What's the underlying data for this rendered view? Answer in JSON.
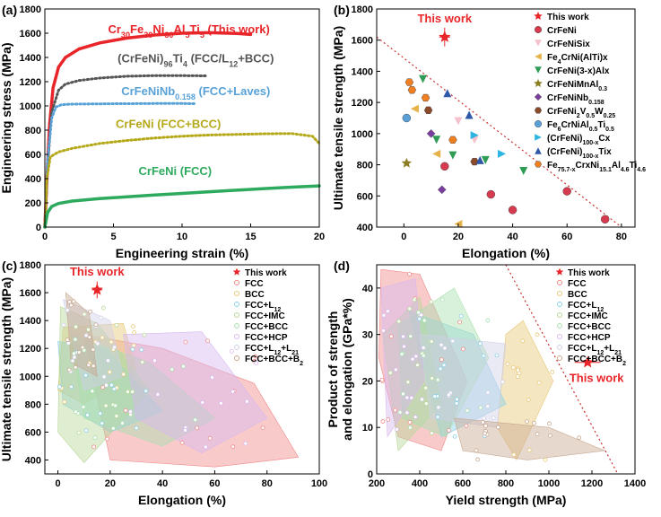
{
  "chart_data": [
    {
      "panel_label": "(a)",
      "type": "line",
      "xlabel": "Engineering strain (%)",
      "ylabel": "Engineering stress (MPa)",
      "xlim": [
        0,
        20
      ],
      "ylim": [
        0,
        1800
      ],
      "xticks": [
        0,
        5,
        10,
        15,
        20
      ],
      "yticks": [
        0,
        200,
        400,
        600,
        800,
        1000,
        1200,
        1400,
        1600,
        1800
      ],
      "series": [
        {
          "name": "Cr30Fe30Ni30Al5Ti5 (This work)",
          "color": "#e8262a",
          "dash": "solid",
          "x": [
            0,
            0.15,
            0.35,
            0.6,
            1.0,
            1.5,
            2.5,
            4,
            6,
            8,
            10,
            12,
            14,
            15
          ],
          "y": [
            0,
            400,
            850,
            1150,
            1320,
            1400,
            1470,
            1520,
            1560,
            1585,
            1600,
            1605,
            1598,
            1590
          ]
        },
        {
          "name": "(CrFeNi)96Ti4 (FCC/L12+BCC)",
          "color": "#555555",
          "dash": "dot",
          "x": [
            0,
            0.2,
            0.5,
            1.0,
            1.5,
            2.5,
            4,
            6,
            8,
            10,
            11.8
          ],
          "y": [
            0,
            500,
            950,
            1130,
            1180,
            1210,
            1230,
            1245,
            1250,
            1250,
            1248
          ]
        },
        {
          "name": "CrFeNiNb0.158 (FCC+Laves)",
          "color": "#58a2d8",
          "dash": "dot",
          "x": [
            0,
            0.2,
            0.5,
            0.8,
            1.2,
            2,
            5,
            8,
            10,
            11
          ],
          "y": [
            0,
            550,
            900,
            990,
            1010,
            1015,
            1018,
            1020,
            1020,
            1018
          ]
        },
        {
          "name": "CrFeNi (FCC+BCC)",
          "color": "#b5a819",
          "dash": "dot",
          "x": [
            0,
            0.15,
            0.4,
            1,
            2,
            4,
            6,
            8,
            10,
            12,
            14,
            16,
            18,
            19.5,
            20
          ],
          "y": [
            0,
            400,
            580,
            620,
            650,
            690,
            715,
            735,
            750,
            760,
            765,
            770,
            772,
            750,
            690
          ]
        },
        {
          "name": "CrFeNi (FCC)",
          "color": "#2eaa5e",
          "dash": "solid",
          "x": [
            0,
            0.2,
            0.5,
            1,
            2,
            4,
            6,
            8,
            10,
            12,
            14,
            16,
            18,
            20
          ],
          "y": [
            0,
            120,
            170,
            195,
            215,
            235,
            250,
            265,
            278,
            292,
            305,
            318,
            330,
            340
          ]
        }
      ],
      "annotations": [
        {
          "text": "Cr30Fe30Ni30Al5Ti5 (This work)",
          "color": "#e8262a"
        },
        {
          "text": "(CrFeNi)96Ti4 (FCC/L12+BCC)",
          "color": "#555555"
        },
        {
          "text": "CrFeNiNb0.158 (FCC+Laves)",
          "color": "#58a2d8"
        },
        {
          "text": "CrFeNi (FCC+BCC)",
          "color": "#b5a819"
        },
        {
          "text": "CrFeNi (FCC)",
          "color": "#2eaa5e"
        }
      ]
    },
    {
      "panel_label": "(b)",
      "type": "scatter",
      "xlabel": "Elongation (%)",
      "ylabel": "Ultimate tensile strength (MPa)",
      "xlim": [
        -10,
        85
      ],
      "ylim": [
        400,
        1800
      ],
      "xticks": [
        0,
        20,
        40,
        60,
        80
      ],
      "yticks": [
        400,
        600,
        800,
        1000,
        1200,
        1400,
        1600,
        1800
      ],
      "this_work": {
        "label": "This work",
        "x": 15,
        "y": 1620,
        "xerr": 2,
        "yerr": 60,
        "color": "#e8262a"
      },
      "trend_line": {
        "x": [
          -10,
          80
        ],
        "y": [
          1620,
          400
        ],
        "color": "#c83030"
      },
      "series": [
        {
          "name": "This work",
          "marker": "star",
          "color": "#e8262a",
          "points": [
            [
              15,
              1620
            ]
          ]
        },
        {
          "name": "CrFeNi",
          "marker": "circle",
          "color": "#d63a4e",
          "points": [
            [
              15,
              790
            ],
            [
              32,
              610
            ],
            [
              40,
              510
            ],
            [
              60,
              630
            ],
            [
              74,
              450
            ]
          ]
        },
        {
          "name": "CrFeNiSix",
          "marker": "tri-down",
          "color": "#f4c2cc",
          "points": [
            [
              20,
              1080
            ],
            [
              26,
              960
            ]
          ]
        },
        {
          "name": "Fe4CrNi(AlTi)x",
          "marker": "tri-left",
          "color": "#e6b24a",
          "points": [
            [
              4,
              1160
            ],
            [
              12,
              870
            ],
            [
              20,
              420
            ]
          ]
        },
        {
          "name": "CrFeNi(3-x)Alx",
          "marker": "tri-down",
          "color": "#2e9c55",
          "points": [
            [
              7,
              1350
            ],
            [
              12,
              960
            ],
            [
              18,
              860
            ],
            [
              30,
              830
            ],
            [
              44,
              760
            ]
          ]
        },
        {
          "name": "CrFeNiMnAl0.3",
          "marker": "star",
          "color": "#8b7d22",
          "points": [
            [
              1,
              810
            ]
          ]
        },
        {
          "name": "CrFeNiNb0.158",
          "marker": "diamond",
          "color": "#7a3ea0",
          "points": [
            [
              10,
              1000
            ],
            [
              14,
              640
            ]
          ]
        },
        {
          "name": "CrFeNi2V0.5W0.25",
          "marker": "hexagon",
          "color": "#8b4a2a",
          "points": [
            [
              9,
              1150
            ],
            [
              26,
              820
            ]
          ]
        },
        {
          "name": "Fe6CrNiAl0.5Ti0.5",
          "marker": "circle",
          "color": "#5aa0d8",
          "points": [
            [
              1,
              1100
            ]
          ]
        },
        {
          "name": "(CrFeNi)100-xCx",
          "marker": "tri-right",
          "color": "#2bb5e0",
          "points": [
            [
              26,
              990
            ],
            [
              36,
              870
            ]
          ]
        },
        {
          "name": "(CrFeNi)100-xTix",
          "marker": "tri-up",
          "color": "#3058a8",
          "points": [
            [
              16,
              1260
            ],
            [
              24,
              1120
            ],
            [
              28,
              830
            ]
          ]
        },
        {
          "name": "Fe75.7-xCrxNi15.1Al4.6Ti4.6",
          "marker": "hexagon",
          "color": "#f07f22",
          "points": [
            [
              2,
              1330
            ],
            [
              3,
              1280
            ],
            [
              8,
              1230
            ],
            [
              18,
              960
            ]
          ]
        }
      ]
    },
    {
      "panel_label": "(c)",
      "type": "scatter",
      "xlabel": "Elongation (%)",
      "ylabel": "Ultimate tensile strength (MPa)",
      "xlim": [
        -5,
        100
      ],
      "ylim": [
        300,
        1800
      ],
      "xticks": [
        0,
        20,
        40,
        60,
        80,
        100
      ],
      "yticks": [
        400,
        600,
        800,
        1000,
        1200,
        1400,
        1600,
        1800
      ],
      "this_work": {
        "label": "This work",
        "x": 15,
        "y": 1620,
        "xerr": 2,
        "yerr": 60,
        "color": "#e8262a"
      },
      "legend": [
        "This work",
        "FCC",
        "BCC",
        "FCC+L12",
        "FCC+IMC",
        "FCC+BCC",
        "FCC+HCP",
        "FCC+L12+L21",
        "FCC+BCC+B2"
      ],
      "regions": [
        {
          "name": "FCC",
          "color": "#f08a8a",
          "poly": [
            [
              10,
              1300
            ],
            [
              40,
              1200
            ],
            [
              75,
              950
            ],
            [
              92,
              420
            ],
            [
              60,
              350
            ],
            [
              20,
              400
            ]
          ]
        },
        {
          "name": "BCC",
          "color": "#e8c878",
          "poly": [
            [
              2,
              1350
            ],
            [
              25,
              1380
            ],
            [
              30,
              1050
            ],
            [
              10,
              800
            ],
            [
              0,
              900
            ]
          ]
        },
        {
          "name": "FCC+L12",
          "color": "#8ad0e8",
          "poly": [
            [
              0,
              1250
            ],
            [
              18,
              1200
            ],
            [
              40,
              750
            ],
            [
              20,
              600
            ],
            [
              2,
              800
            ]
          ]
        },
        {
          "name": "FCC+IMC",
          "color": "#b8d898",
          "poly": [
            [
              1,
              1500
            ],
            [
              15,
              1380
            ],
            [
              35,
              900
            ],
            [
              10,
              380
            ],
            [
              0,
              600
            ]
          ]
        },
        {
          "name": "FCC+BCC",
          "color": "#a8e0b0",
          "poly": [
            [
              5,
              1300
            ],
            [
              35,
              1100
            ],
            [
              60,
              700
            ],
            [
              40,
              500
            ],
            [
              10,
              700
            ]
          ]
        },
        {
          "name": "FCC+HCP",
          "color": "#d8b8f0",
          "poly": [
            [
              25,
              1300
            ],
            [
              55,
              1320
            ],
            [
              80,
              700
            ],
            [
              55,
              450
            ],
            [
              30,
              700
            ]
          ]
        },
        {
          "name": "FCC+L12+L21",
          "color": "#d0d0e8",
          "poly": [
            [
              2,
              1550
            ],
            [
              20,
              1400
            ],
            [
              25,
              1000
            ],
            [
              10,
              900
            ]
          ]
        },
        {
          "name": "FCC+BCC+B2",
          "color": "#c8a890",
          "poly": [
            [
              3,
              1600
            ],
            [
              12,
              1450
            ],
            [
              15,
              1000
            ],
            [
              5,
              1100
            ]
          ]
        }
      ]
    },
    {
      "panel_label": "(d)",
      "type": "scatter",
      "xlabel": "Yield strength (MPa)",
      "ylabel": "Product of strength and elongation (GPa*%)",
      "xlim": [
        200,
        1400
      ],
      "ylim": [
        0,
        45
      ],
      "xticks": [
        200,
        400,
        600,
        800,
        1000,
        1200,
        1400
      ],
      "yticks": [
        0,
        10,
        20,
        30,
        40
      ],
      "this_work": {
        "label": "This work",
        "x": 1180,
        "y": 24,
        "xerr": 60,
        "yerr": 0,
        "color": "#e8262a"
      },
      "trend_line": {
        "x": [
          800,
          1320
        ],
        "y": [
          45,
          0
        ],
        "color": "#c83030"
      },
      "legend": [
        "This work",
        "FCC",
        "BCC",
        "FCC+L12",
        "FCC+IMC",
        "FCC+BCC",
        "FCC+HCP",
        "FCC+L12+L21",
        "FCC+BCC+B2"
      ],
      "regions": [
        {
          "name": "FCC",
          "color": "#f08a8a",
          "poly": [
            [
              220,
              44
            ],
            [
              400,
              43
            ],
            [
              620,
              20
            ],
            [
              500,
              5
            ],
            [
              300,
              8
            ],
            [
              210,
              25
            ]
          ]
        },
        {
          "name": "BCC",
          "color": "#e8c878",
          "poly": [
            [
              800,
              30
            ],
            [
              880,
              33
            ],
            [
              1020,
              20
            ],
            [
              850,
              3
            ],
            [
              760,
              10
            ]
          ]
        },
        {
          "name": "FCC+L12",
          "color": "#8ad0e8",
          "poly": [
            [
              350,
              35
            ],
            [
              650,
              30
            ],
            [
              800,
              15
            ],
            [
              500,
              8
            ]
          ]
        },
        {
          "name": "FCC+IMC",
          "color": "#b8d898",
          "poly": [
            [
              230,
              30
            ],
            [
              400,
              38
            ],
            [
              500,
              15
            ],
            [
              300,
              5
            ]
          ]
        },
        {
          "name": "FCC+BCC",
          "color": "#a8e0b0",
          "poly": [
            [
              300,
              32
            ],
            [
              560,
              40
            ],
            [
              720,
              25
            ],
            [
              520,
              8
            ],
            [
              320,
              12
            ]
          ]
        },
        {
          "name": "FCC+HCP",
          "color": "#d8b8f0",
          "poly": [
            [
              220,
              40
            ],
            [
              380,
              42
            ],
            [
              420,
              20
            ],
            [
              250,
              8
            ]
          ]
        },
        {
          "name": "FCC+L12+L21",
          "color": "#d0d0e8",
          "poly": [
            [
              400,
              30
            ],
            [
              800,
              28
            ],
            [
              760,
              10
            ],
            [
              450,
              12
            ]
          ]
        },
        {
          "name": "FCC+BCC+B2",
          "color": "#c8a890",
          "poly": [
            [
              560,
              12
            ],
            [
              1000,
              10
            ],
            [
              1260,
              5
            ],
            [
              900,
              3
            ],
            [
              600,
              5
            ]
          ]
        }
      ]
    }
  ]
}
